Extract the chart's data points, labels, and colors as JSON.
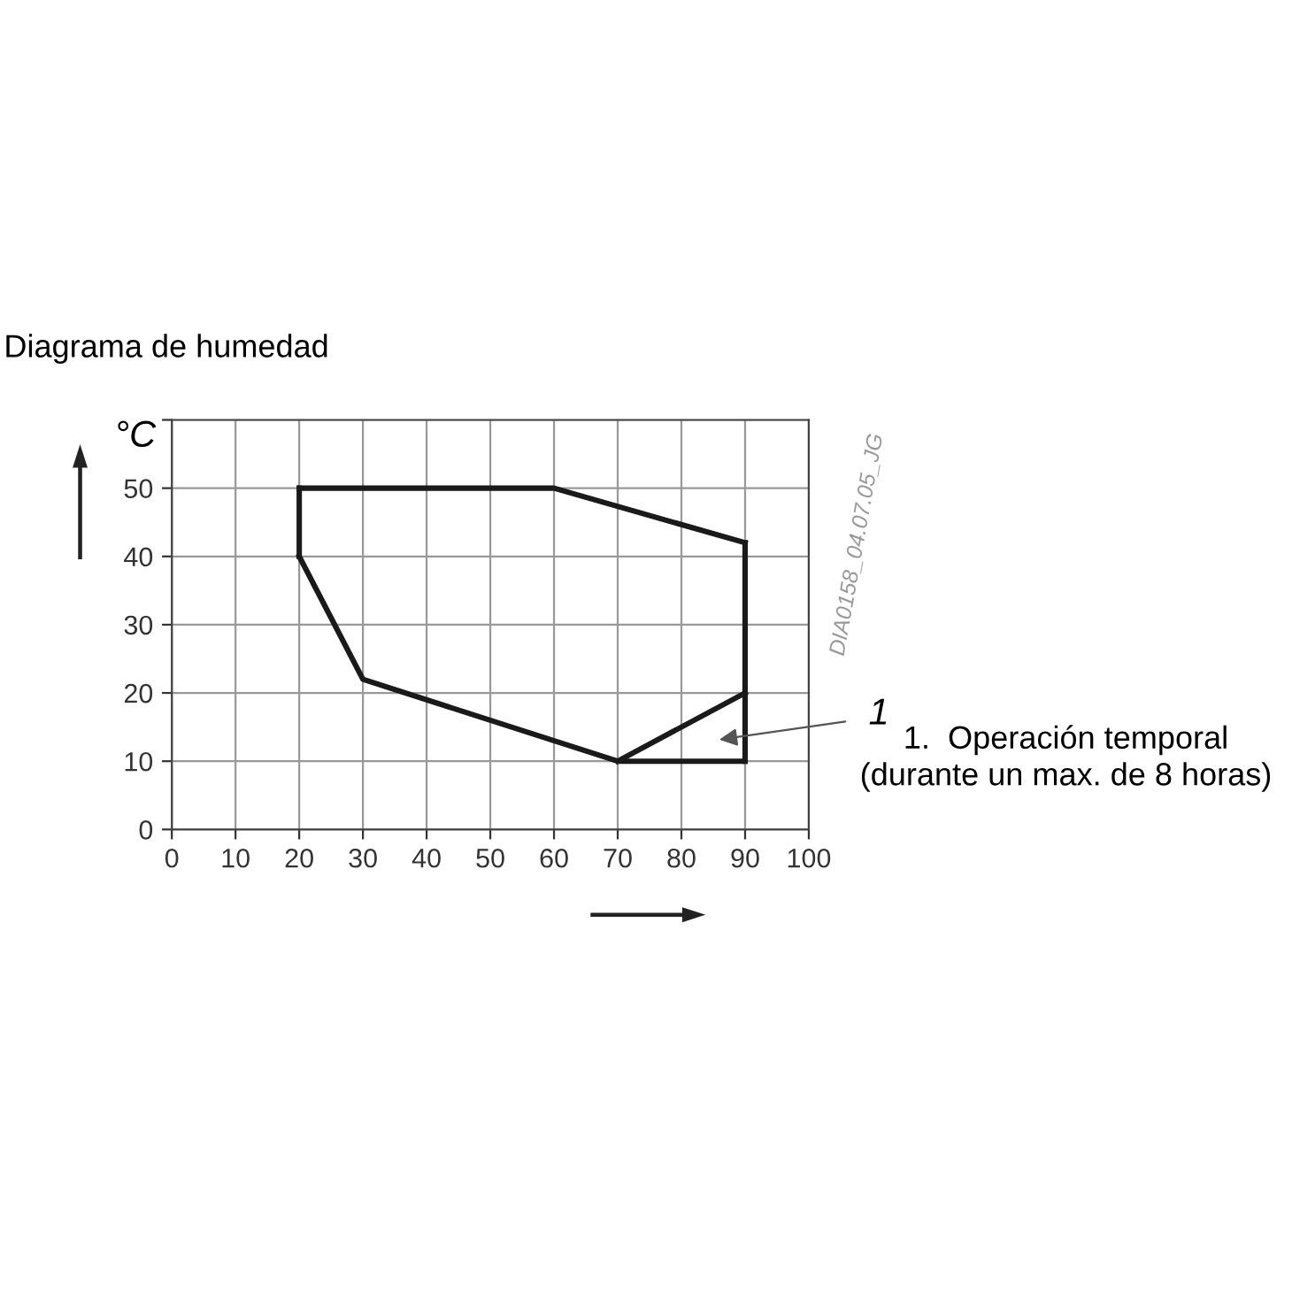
{
  "chart_data": {
    "type": "line",
    "title": "Diagrama de humedad",
    "ylabel": "°C",
    "series": [
      {
        "color": "#1a1a1a",
        "x": [
          20,
          60,
          90
        ],
        "values": [
          50,
          50,
          42
        ]
      },
      {
        "color": "#1a1a1a",
        "x": [
          20,
          30,
          70,
          90
        ],
        "values": [
          40,
          22,
          10,
          10
        ]
      },
      {
        "color": "#1a1a1a",
        "x": [
          70,
          90
        ],
        "values": [
          10,
          20
        ]
      },
      {
        "color": "#1a1a1a",
        "x": [
          20,
          20
        ],
        "values": [
          40,
          50
        ]
      },
      {
        "color": "#1a1a1a",
        "x": [
          90,
          90
        ],
        "values": [
          10,
          42
        ]
      }
    ],
    "xlim": [
      0,
      100
    ],
    "xticks": [
      0,
      10,
      20,
      30,
      40,
      50,
      60,
      70,
      80,
      90,
      100
    ],
    "ylim": [
      0,
      60
    ],
    "yticks": [
      0,
      10,
      20,
      30,
      40,
      50,
      {
        "value": 60,
        "label": null
      }
    ],
    "grid": true,
    "marker": "none",
    "line_style": "solid",
    "annotations": [
      "1",
      "1.  Operación temporal\n(durante un max. de 8 horas)",
      "DIA0158_04.07.05_JG"
    ]
  }
}
